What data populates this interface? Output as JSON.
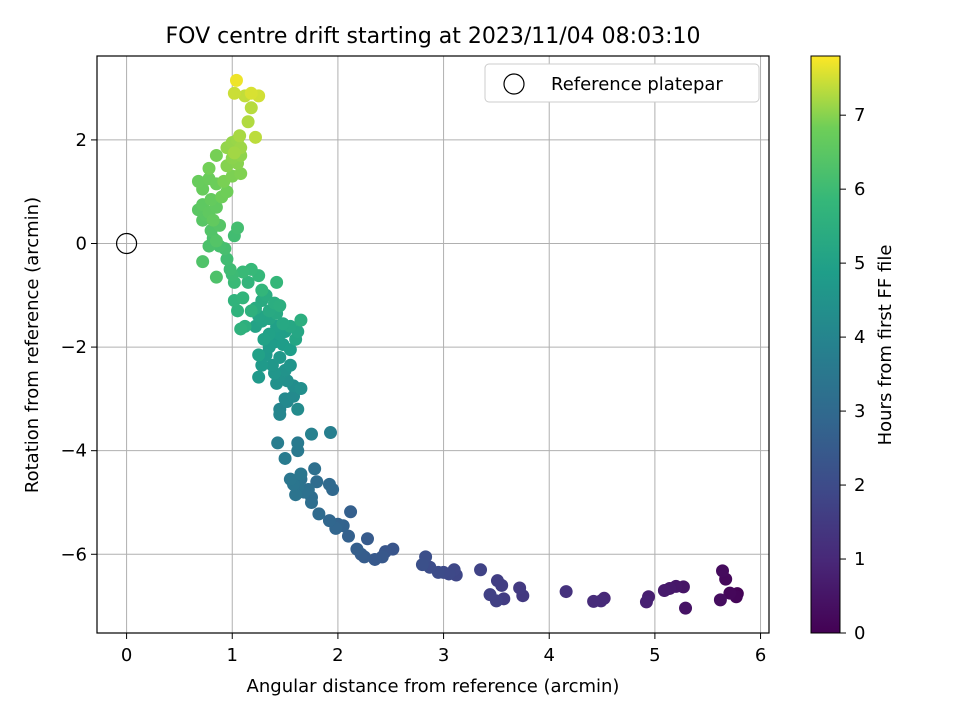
{
  "chart_data": {
    "type": "scatter",
    "title": "FOV centre drift starting at 2023/11/04 08:03:10",
    "xlabel": "Angular distance from reference (arcmin)",
    "ylabel": "Rotation from reference (arcmin)",
    "xlim": [
      -0.28,
      6.08
    ],
    "ylim": [
      -7.52,
      3.62
    ],
    "xticks": [
      0,
      1,
      2,
      3,
      4,
      5,
      6
    ],
    "xtick_labels": [
      "0",
      "1",
      "2",
      "3",
      "4",
      "5",
      "6"
    ],
    "yticks": [
      2,
      0,
      -2,
      -4,
      -6
    ],
    "ytick_labels": [
      "2",
      "0",
      "−2",
      "−4",
      "−6"
    ],
    "grid": true,
    "legend": {
      "position": "top-right",
      "entries": [
        {
          "label": "Reference platepar",
          "marker": "open-circle"
        }
      ]
    },
    "reference_point": {
      "x": 0,
      "y": 0
    },
    "colorbar": {
      "label": "Hours from first FF file",
      "colormap": "viridis",
      "range": [
        0,
        7.8
      ],
      "ticks": [
        0,
        1,
        2,
        3,
        4,
        5,
        6,
        7
      ],
      "tick_labels": [
        "0",
        "1",
        "2",
        "3",
        "4",
        "5",
        "6",
        "7"
      ]
    },
    "points": [
      [
        5.78,
        -6.76,
        0.05
      ],
      [
        5.77,
        -6.82,
        0.1
      ],
      [
        5.71,
        -6.75,
        0.15
      ],
      [
        5.67,
        -6.48,
        0.2
      ],
      [
        5.64,
        -6.32,
        0.25
      ],
      [
        5.62,
        -6.88,
        0.3
      ],
      [
        5.29,
        -7.04,
        0.45
      ],
      [
        5.27,
        -6.63,
        0.5
      ],
      [
        5.2,
        -6.62,
        0.55
      ],
      [
        5.14,
        -6.66,
        0.6
      ],
      [
        5.09,
        -6.7,
        0.65
      ],
      [
        4.94,
        -6.82,
        0.75
      ],
      [
        4.92,
        -6.92,
        0.8
      ],
      [
        4.52,
        -6.85,
        1.0
      ],
      [
        4.49,
        -6.9,
        1.05
      ],
      [
        4.42,
        -6.91,
        1.1
      ],
      [
        4.16,
        -6.72,
        1.25
      ],
      [
        3.75,
        -6.8,
        1.45
      ],
      [
        3.72,
        -6.65,
        1.5
      ],
      [
        3.57,
        -6.86,
        1.55
      ],
      [
        3.55,
        -6.6,
        1.6
      ],
      [
        3.51,
        -6.51,
        1.62
      ],
      [
        3.5,
        -6.9,
        1.65
      ],
      [
        3.44,
        -6.78,
        1.7
      ],
      [
        3.35,
        -6.3,
        1.75
      ],
      [
        3.12,
        -6.4,
        1.85
      ],
      [
        3.1,
        -6.3,
        1.88
      ],
      [
        3.05,
        -6.38,
        1.92
      ],
      [
        3.0,
        -6.35,
        1.95
      ],
      [
        2.95,
        -6.35,
        2.0
      ],
      [
        2.87,
        -6.25,
        2.05
      ],
      [
        2.83,
        -6.05,
        2.1
      ],
      [
        2.8,
        -6.2,
        2.15
      ],
      [
        2.52,
        -5.9,
        2.3
      ],
      [
        2.45,
        -5.95,
        2.35
      ],
      [
        2.42,
        -6.05,
        2.4
      ],
      [
        2.35,
        -6.1,
        2.45
      ],
      [
        2.28,
        -5.7,
        2.5
      ],
      [
        2.25,
        -6.05,
        2.55
      ],
      [
        2.22,
        -6.0,
        2.58
      ],
      [
        2.18,
        -5.9,
        2.62
      ],
      [
        2.12,
        -5.18,
        2.65
      ],
      [
        2.1,
        -5.65,
        2.7
      ],
      [
        2.05,
        -5.45,
        2.75
      ],
      [
        2.0,
        -5.42,
        2.8
      ],
      [
        1.98,
        -5.5,
        2.85
      ],
      [
        1.92,
        -5.35,
        2.9
      ],
      [
        1.95,
        -4.75,
        2.95
      ],
      [
        1.92,
        -4.65,
        3.0
      ],
      [
        1.82,
        -5.22,
        3.05
      ],
      [
        1.8,
        -4.6,
        3.08
      ],
      [
        1.75,
        -4.9,
        3.12
      ],
      [
        1.75,
        -5.0,
        3.15
      ],
      [
        1.72,
        -4.75,
        3.2
      ],
      [
        1.78,
        -4.35,
        3.22
      ],
      [
        1.68,
        -4.8,
        3.25
      ],
      [
        1.65,
        -4.55,
        3.3
      ],
      [
        1.62,
        -4.7,
        3.35
      ],
      [
        1.6,
        -4.85,
        3.38
      ],
      [
        1.58,
        -4.65,
        3.42
      ],
      [
        1.55,
        -4.55,
        3.45
      ],
      [
        1.65,
        -4.45,
        3.5
      ],
      [
        1.62,
        -4.0,
        3.55
      ],
      [
        1.62,
        -3.85,
        3.6
      ],
      [
        1.5,
        -4.15,
        3.65
      ],
      [
        1.43,
        -3.85,
        3.72
      ],
      [
        1.93,
        -3.65,
        3.8
      ],
      [
        1.75,
        -3.68,
        3.85
      ],
      [
        1.45,
        -3.2,
        4.0
      ],
      [
        1.45,
        -3.3,
        4.05
      ],
      [
        1.52,
        -3.05,
        4.1
      ],
      [
        1.5,
        -3.0,
        4.15
      ],
      [
        1.58,
        -2.95,
        4.18
      ],
      [
        1.62,
        -3.2,
        4.22
      ],
      [
        1.58,
        -2.75,
        4.3
      ],
      [
        1.65,
        -2.8,
        4.35
      ],
      [
        1.52,
        -2.65,
        4.38
      ],
      [
        1.42,
        -2.7,
        4.42
      ],
      [
        1.45,
        -2.55,
        4.45
      ],
      [
        1.5,
        -2.45,
        4.5
      ],
      [
        1.55,
        -2.35,
        4.55
      ],
      [
        1.4,
        -2.5,
        4.58
      ],
      [
        1.38,
        -2.35,
        4.62
      ],
      [
        1.45,
        -2.2,
        4.65
      ],
      [
        1.25,
        -2.58,
        4.7
      ],
      [
        1.28,
        -2.35,
        4.72
      ],
      [
        1.32,
        -2.15,
        4.75
      ],
      [
        1.35,
        -2.0,
        4.78
      ],
      [
        1.4,
        -1.9,
        4.82
      ],
      [
        1.48,
        -1.95,
        4.85
      ],
      [
        1.55,
        -2.05,
        4.88
      ],
      [
        1.45,
        -1.75,
        4.9
      ],
      [
        1.5,
        -1.7,
        4.92
      ],
      [
        1.42,
        -1.6,
        4.95
      ],
      [
        1.35,
        -1.75,
        4.98
      ],
      [
        1.25,
        -2.15,
        5.0
      ],
      [
        1.3,
        -1.85,
        5.02
      ],
      [
        1.22,
        -1.6,
        5.05
      ],
      [
        1.28,
        -1.5,
        5.08
      ],
      [
        1.35,
        -1.45,
        5.1
      ],
      [
        1.25,
        -1.4,
        5.12
      ],
      [
        1.6,
        -1.85,
        5.15
      ],
      [
        1.62,
        -1.7,
        5.18
      ],
      [
        1.55,
        -1.6,
        5.22
      ],
      [
        1.48,
        -1.55,
        5.25
      ],
      [
        1.42,
        -1.35,
        5.28
      ],
      [
        1.35,
        -1.3,
        5.3
      ],
      [
        1.28,
        -1.1,
        5.35
      ],
      [
        1.22,
        -1.25,
        5.38
      ],
      [
        1.32,
        -1.0,
        5.42
      ],
      [
        1.4,
        -1.15,
        5.45
      ],
      [
        1.45,
        -1.2,
        5.48
      ],
      [
        1.65,
        -1.48,
        5.5
      ],
      [
        1.12,
        -1.6,
        5.55
      ],
      [
        1.18,
        -1.3,
        5.58
      ],
      [
        1.08,
        -1.65,
        5.62
      ],
      [
        1.05,
        -1.3,
        5.65
      ],
      [
        1.02,
        -1.1,
        5.68
      ],
      [
        1.1,
        -1.05,
        5.72
      ],
      [
        1.15,
        -0.75,
        5.75
      ],
      [
        1.28,
        -0.9,
        5.78
      ],
      [
        1.42,
        -0.75,
        5.82
      ],
      [
        1.25,
        -0.62,
        5.85
      ],
      [
        1.18,
        -0.5,
        5.88
      ],
      [
        1.1,
        -0.55,
        5.92
      ],
      [
        1.02,
        -0.75,
        5.95
      ],
      [
        1.0,
        -0.6,
        5.98
      ],
      [
        0.98,
        -0.5,
        6.02
      ],
      [
        0.95,
        -0.3,
        6.05
      ],
      [
        1.02,
        0.15,
        6.08
      ],
      [
        1.05,
        0.3,
        6.12
      ],
      [
        0.93,
        -0.1,
        6.15
      ],
      [
        0.88,
        -0.05,
        6.18
      ],
      [
        0.82,
        0.1,
        6.22
      ],
      [
        0.78,
        -0.05,
        6.25
      ],
      [
        0.85,
        -0.65,
        6.28
      ],
      [
        0.72,
        -0.35,
        6.32
      ],
      [
        0.8,
        0.25,
        6.35
      ],
      [
        0.85,
        0.05,
        6.38
      ],
      [
        0.88,
        0.35,
        6.42
      ],
      [
        0.72,
        0.45,
        6.45
      ],
      [
        0.75,
        0.55,
        6.48
      ],
      [
        0.68,
        0.65,
        6.5
      ],
      [
        0.72,
        0.75,
        6.55
      ],
      [
        0.78,
        0.6,
        6.58
      ],
      [
        0.85,
        0.7,
        6.6
      ],
      [
        0.82,
        0.45,
        6.62
      ],
      [
        0.8,
        0.85,
        6.65
      ],
      [
        0.72,
        1.05,
        6.7
      ],
      [
        0.68,
        1.2,
        6.72
      ],
      [
        0.78,
        1.25,
        6.75
      ],
      [
        0.85,
        1.15,
        6.78
      ],
      [
        0.9,
        0.9,
        6.8
      ],
      [
        0.95,
        1.0,
        6.82
      ],
      [
        0.78,
        1.45,
        6.85
      ],
      [
        0.85,
        1.7,
        6.88
      ],
      [
        0.92,
        1.2,
        6.9
      ],
      [
        1.0,
        1.3,
        6.92
      ],
      [
        1.08,
        1.35,
        6.95
      ],
      [
        0.95,
        1.5,
        6.98
      ],
      [
        1.05,
        1.55,
        7.0
      ],
      [
        1.0,
        1.65,
        7.02
      ],
      [
        1.08,
        1.7,
        7.05
      ],
      [
        0.95,
        1.85,
        7.08
      ],
      [
        1.0,
        1.95,
        7.1
      ],
      [
        1.05,
        2.0,
        7.12
      ],
      [
        1.08,
        1.85,
        7.15
      ],
      [
        1.02,
        1.75,
        7.18
      ],
      [
        1.07,
        2.08,
        7.22
      ],
      [
        1.15,
        2.35,
        7.28
      ],
      [
        1.18,
        2.62,
        7.32
      ],
      [
        1.22,
        2.05,
        7.36
      ],
      [
        1.12,
        2.85,
        7.4
      ],
      [
        1.02,
        2.9,
        7.45
      ],
      [
        1.25,
        2.85,
        7.5
      ],
      [
        1.18,
        2.9,
        7.55
      ],
      [
        1.04,
        3.15,
        7.7
      ]
    ]
  }
}
